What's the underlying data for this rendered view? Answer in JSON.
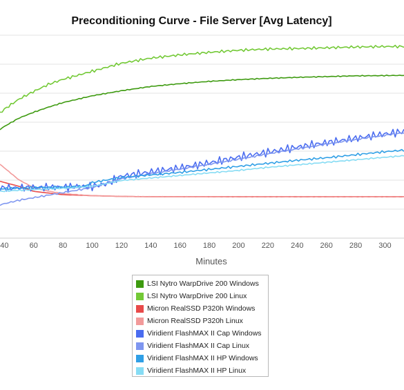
{
  "chart_data": {
    "type": "line",
    "title": "Preconditioning Curve - File Server [Avg Latency]",
    "xlabel": "Minutes",
    "ylabel": "",
    "x_ticks": [
      40,
      60,
      80,
      100,
      120,
      140,
      160,
      180,
      200,
      220,
      240,
      260,
      280,
      300
    ],
    "xlim": [
      37,
      313
    ],
    "ylim": [
      0,
      8
    ],
    "grid": true,
    "legend_position": "bottom",
    "series": [
      {
        "name": "LSI Nytro WarpDrive 200 Windows",
        "color": "#3d9a0f",
        "noise": 0.02,
        "points": [
          [
            37,
            4.3
          ],
          [
            40,
            4.42
          ],
          [
            50,
            4.75
          ],
          [
            60,
            4.98
          ],
          [
            70,
            5.18
          ],
          [
            80,
            5.36
          ],
          [
            100,
            5.63
          ],
          [
            120,
            5.83
          ],
          [
            140,
            6.0
          ],
          [
            160,
            6.11
          ],
          [
            180,
            6.2
          ],
          [
            200,
            6.27
          ],
          [
            220,
            6.32
          ],
          [
            240,
            6.36
          ],
          [
            260,
            6.39
          ],
          [
            280,
            6.42
          ],
          [
            300,
            6.43
          ],
          [
            313,
            6.44
          ]
        ]
      },
      {
        "name": "LSI Nytro WarpDrive 200 Linux",
        "color": "#73c936",
        "noise": 0.06,
        "points": [
          [
            37,
            4.95
          ],
          [
            40,
            5.1
          ],
          [
            50,
            5.5
          ],
          [
            60,
            5.8
          ],
          [
            70,
            6.08
          ],
          [
            80,
            6.28
          ],
          [
            100,
            6.6
          ],
          [
            120,
            6.92
          ],
          [
            140,
            7.12
          ],
          [
            160,
            7.25
          ],
          [
            180,
            7.35
          ],
          [
            200,
            7.43
          ],
          [
            220,
            7.48
          ],
          [
            240,
            7.5
          ],
          [
            260,
            7.53
          ],
          [
            280,
            7.56
          ],
          [
            300,
            7.58
          ],
          [
            313,
            7.58
          ]
        ]
      },
      {
        "name": "Micron RealSSD P320h Windows",
        "color": "#e84a4a",
        "noise": 0.0,
        "points": [
          [
            37,
            2.25
          ],
          [
            40,
            2.2
          ],
          [
            50,
            2.05
          ],
          [
            60,
            1.85
          ],
          [
            80,
            1.72
          ],
          [
            100,
            1.68
          ],
          [
            120,
            1.65
          ],
          [
            140,
            1.64
          ],
          [
            200,
            1.64
          ],
          [
            313,
            1.64
          ]
        ]
      },
      {
        "name": "Micron RealSSD P320h Linux",
        "color": "#f29a9a",
        "noise": 0.01,
        "points": [
          [
            37,
            2.92
          ],
          [
            40,
            2.78
          ],
          [
            50,
            2.3
          ],
          [
            60,
            2.0
          ],
          [
            70,
            1.86
          ],
          [
            80,
            1.76
          ],
          [
            100,
            1.68
          ],
          [
            120,
            1.65
          ],
          [
            140,
            1.64
          ],
          [
            200,
            1.63
          ],
          [
            313,
            1.63
          ]
        ]
      },
      {
        "name": "Viridient FlashMAX II Cap Windows",
        "color": "#4a6cf0",
        "noise": 0.18,
        "points": [
          [
            37,
            1.98
          ],
          [
            60,
            2.0
          ],
          [
            80,
            2.02
          ],
          [
            100,
            2.05
          ],
          [
            110,
            2.15
          ],
          [
            120,
            2.45
          ],
          [
            140,
            2.62
          ],
          [
            160,
            2.78
          ],
          [
            180,
            2.98
          ],
          [
            200,
            3.2
          ],
          [
            220,
            3.4
          ],
          [
            240,
            3.6
          ],
          [
            260,
            3.78
          ],
          [
            280,
            3.95
          ],
          [
            300,
            4.12
          ],
          [
            313,
            4.22
          ]
        ]
      },
      {
        "name": "Viridient FlashMAX II Cap Linux",
        "color": "#7e96f0",
        "noise": 0.04,
        "points": [
          [
            37,
            1.32
          ],
          [
            50,
            1.5
          ],
          [
            60,
            1.6
          ],
          [
            80,
            1.8
          ],
          [
            100,
            2.0
          ],
          [
            120,
            2.35
          ],
          [
            140,
            2.55
          ],
          [
            160,
            2.73
          ],
          [
            180,
            2.92
          ],
          [
            200,
            3.12
          ],
          [
            220,
            3.33
          ],
          [
            240,
            3.53
          ],
          [
            260,
            3.72
          ],
          [
            280,
            3.9
          ],
          [
            300,
            4.07
          ],
          [
            313,
            4.17
          ]
        ]
      },
      {
        "name": "Viridient FlashMAX II HP Windows",
        "color": "#2f9fe6",
        "noise": 0.05,
        "points": [
          [
            37,
            1.95
          ],
          [
            60,
            2.0
          ],
          [
            80,
            2.02
          ],
          [
            95,
            2.05
          ],
          [
            100,
            2.2
          ],
          [
            110,
            2.3
          ],
          [
            120,
            2.4
          ],
          [
            140,
            2.5
          ],
          [
            160,
            2.6
          ],
          [
            180,
            2.72
          ],
          [
            200,
            2.84
          ],
          [
            220,
            2.96
          ],
          [
            240,
            3.08
          ],
          [
            260,
            3.18
          ],
          [
            280,
            3.3
          ],
          [
            300,
            3.42
          ],
          [
            313,
            3.48
          ]
        ]
      },
      {
        "name": "Viridient FlashMAX II HP Linux",
        "color": "#86dcf4",
        "noise": 0.03,
        "points": [
          [
            37,
            1.85
          ],
          [
            60,
            1.92
          ],
          [
            80,
            1.97
          ],
          [
            100,
            2.05
          ],
          [
            120,
            2.28
          ],
          [
            140,
            2.38
          ],
          [
            160,
            2.48
          ],
          [
            180,
            2.58
          ],
          [
            200,
            2.68
          ],
          [
            220,
            2.8
          ],
          [
            240,
            2.9
          ],
          [
            260,
            3.0
          ],
          [
            280,
            3.1
          ],
          [
            300,
            3.2
          ],
          [
            313,
            3.26
          ]
        ]
      }
    ]
  }
}
